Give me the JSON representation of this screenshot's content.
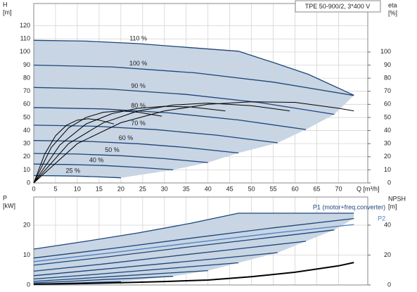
{
  "chart_data": [
    {
      "type": "line",
      "title": "TPE 50-900/2, 3*400 V",
      "y_label": [
        "H",
        "[m]"
      ],
      "y2_label": [
        "eta",
        "[%]"
      ],
      "x_label": "Q [m³/h]",
      "xlim": [
        0,
        76.7
      ],
      "xticks": [
        0,
        5,
        10,
        15,
        20,
        25,
        30,
        35,
        40,
        45,
        50,
        55,
        60,
        65,
        70
      ],
      "ylim": [
        0,
        137
      ],
      "yticks": [
        0,
        10,
        20,
        30,
        40,
        50,
        60,
        70,
        80,
        90,
        100,
        110,
        120
      ],
      "y2lim": [
        0,
        137
      ],
      "y2ticks": [
        0,
        10,
        20,
        30,
        40,
        50,
        60,
        70,
        80,
        90,
        100
      ],
      "grid": true,
      "fill_color": "#c7d5e5",
      "series": [
        {
          "name": "110 %",
          "color": "#1d4578",
          "x": [
            0,
            12,
            24,
            36,
            47,
            55,
            63,
            73.5
          ],
          "values": [
            108.9,
            108.3,
            106.4,
            103.3,
            100.6,
            92,
            83,
            67
          ]
        },
        {
          "name": "100 %",
          "color": "#1d4578",
          "x": [
            0,
            18,
            37,
            55,
            73.5
          ],
          "values": [
            90,
            88.6,
            84.1,
            77.0,
            66.8
          ]
        },
        {
          "name": "90 %",
          "color": "#1d4578",
          "x": [
            0,
            17,
            35,
            52,
            69
          ],
          "values": [
            72.9,
            71.7,
            67.6,
            61.3,
            52.4
          ]
        },
        {
          "name": "80 %",
          "color": "#1d4578",
          "x": [
            0,
            16,
            31,
            47,
            62.5
          ],
          "values": [
            57.6,
            56.5,
            53.5,
            48.1,
            40.8
          ]
        },
        {
          "name": "70 %",
          "color": "#1d4578",
          "x": [
            0,
            14,
            28,
            42,
            56
          ],
          "values": [
            44.1,
            43.3,
            40.7,
            36.5,
            30.6
          ]
        },
        {
          "name": "60 %",
          "color": "#1d4578",
          "x": [
            0,
            12,
            24,
            35,
            47
          ],
          "values": [
            32.4,
            31.8,
            29.9,
            27.1,
            22.9
          ]
        },
        {
          "name": "50 %",
          "color": "#1d4578",
          "x": [
            0,
            10,
            20,
            30,
            40
          ],
          "values": [
            22.5,
            22.1,
            20.8,
            18.6,
            15.6
          ]
        },
        {
          "name": "40 %",
          "color": "#1d4578",
          "x": [
            0,
            8,
            16,
            24,
            32
          ],
          "values": [
            14.4,
            14.1,
            13.3,
            11.9,
            10.0
          ]
        },
        {
          "name": "25 %",
          "color": "#1d4578",
          "x": [
            0,
            5,
            10,
            15,
            20
          ],
          "values": [
            5.6,
            5.5,
            5.2,
            4.6,
            3.9
          ]
        },
        {
          "color": "#000000",
          "axis": "y2",
          "x": [
            0,
            10,
            20,
            30,
            40,
            50,
            60,
            70,
            73.5
          ],
          "values": [
            0,
            30,
            46,
            55,
            60,
            62,
            61.5,
            57,
            55
          ]
        },
        {
          "color": "#000000",
          "axis": "y2",
          "x": [
            0,
            8,
            16,
            24,
            32,
            40,
            50,
            58.8
          ],
          "values": [
            0,
            30,
            46,
            55,
            59.5,
            61,
            59,
            55
          ]
        },
        {
          "color": "#000000",
          "axis": "y2",
          "x": [
            0,
            6,
            12,
            18,
            24,
            30,
            36,
            44
          ],
          "values": [
            0,
            29,
            45,
            53,
            57,
            58.5,
            58,
            55
          ]
        },
        {
          "color": "#000000",
          "axis": "y2",
          "x": [
            0,
            4,
            8,
            12,
            16,
            20,
            24,
            29.4
          ],
          "values": [
            0,
            27,
            42,
            50,
            54,
            55,
            54,
            51
          ]
        },
        {
          "color": "#000000",
          "axis": "y2",
          "x": [
            0,
            2.5,
            5,
            7.5,
            10,
            12.5,
            15,
            18.4
          ],
          "values": [
            0,
            22,
            36,
            44,
            48,
            49,
            48,
            45
          ]
        }
      ]
    },
    {
      "type": "line",
      "y_label": [
        "P",
        "[kW]"
      ],
      "y2_label": [
        "NPSH",
        "[m]"
      ],
      "xlim": [
        0,
        76.7
      ],
      "ylim": [
        0,
        29.4
      ],
      "yticks": [
        0,
        10,
        20
      ],
      "y2lim": [
        0,
        58.8
      ],
      "y2ticks": [
        0,
        20,
        40
      ],
      "grid": true,
      "fill_color": "#c7d5e5",
      "series": [
        {
          "name": "P1 (motor+freq.converter)",
          "color": "#1d4578",
          "x": [
            0,
            12,
            24,
            36,
            47,
            60,
            73.5
          ],
          "values": [
            12,
            14.6,
            17.4,
            20.6,
            24,
            24,
            24
          ]
        },
        {
          "color": "#1d4578",
          "x": [
            0,
            18,
            37,
            55,
            73.5
          ],
          "values": [
            9,
            12.2,
            15.8,
            19.1,
            22.2
          ]
        },
        {
          "color": "#1d4578",
          "x": [
            0,
            17,
            35,
            52,
            69
          ],
          "values": [
            6.6,
            9.4,
            12.6,
            15.5,
            18.4
          ]
        },
        {
          "color": "#1d4578",
          "x": [
            0,
            16,
            31,
            47,
            62.5
          ],
          "values": [
            4.6,
            7,
            9.5,
            12.1,
            14.6
          ]
        },
        {
          "color": "#1d4578",
          "x": [
            0,
            14,
            28,
            42,
            56
          ],
          "values": [
            3.1,
            5,
            6.9,
            8.8,
            10.8
          ]
        },
        {
          "color": "#1d4578",
          "x": [
            0,
            12,
            24,
            35,
            47
          ],
          "values": [
            2,
            3.3,
            4.7,
            6,
            7.4
          ]
        },
        {
          "color": "#1d4578",
          "x": [
            0,
            10,
            20,
            30,
            40
          ],
          "values": [
            1.2,
            2.1,
            3,
            3.9,
            4.8
          ]
        },
        {
          "color": "#1d4578",
          "x": [
            0,
            8,
            16,
            24,
            32
          ],
          "values": [
            0.7,
            1.2,
            1.8,
            2.3,
            2.9
          ]
        },
        {
          "color": "#1d4578",
          "x": [
            0,
            5,
            10,
            15,
            20
          ],
          "values": [
            0.3,
            0.5,
            0.7,
            0.9,
            1.1
          ]
        },
        {
          "name": "P2",
          "color": "#4a7fc1",
          "x": [
            0,
            18,
            37,
            55,
            73.5
          ],
          "values": [
            7.8,
            10.8,
            14.2,
            17.3,
            20.2
          ]
        },
        {
          "color": "#000000",
          "axis": "y2",
          "x": [
            0,
            10,
            20,
            30,
            40,
            50,
            60,
            70,
            73.5
          ],
          "values": [
            0.5,
            0.9,
            1.5,
            2.3,
            3.3,
            5.5,
            8.5,
            12.8,
            15
          ]
        }
      ]
    }
  ]
}
